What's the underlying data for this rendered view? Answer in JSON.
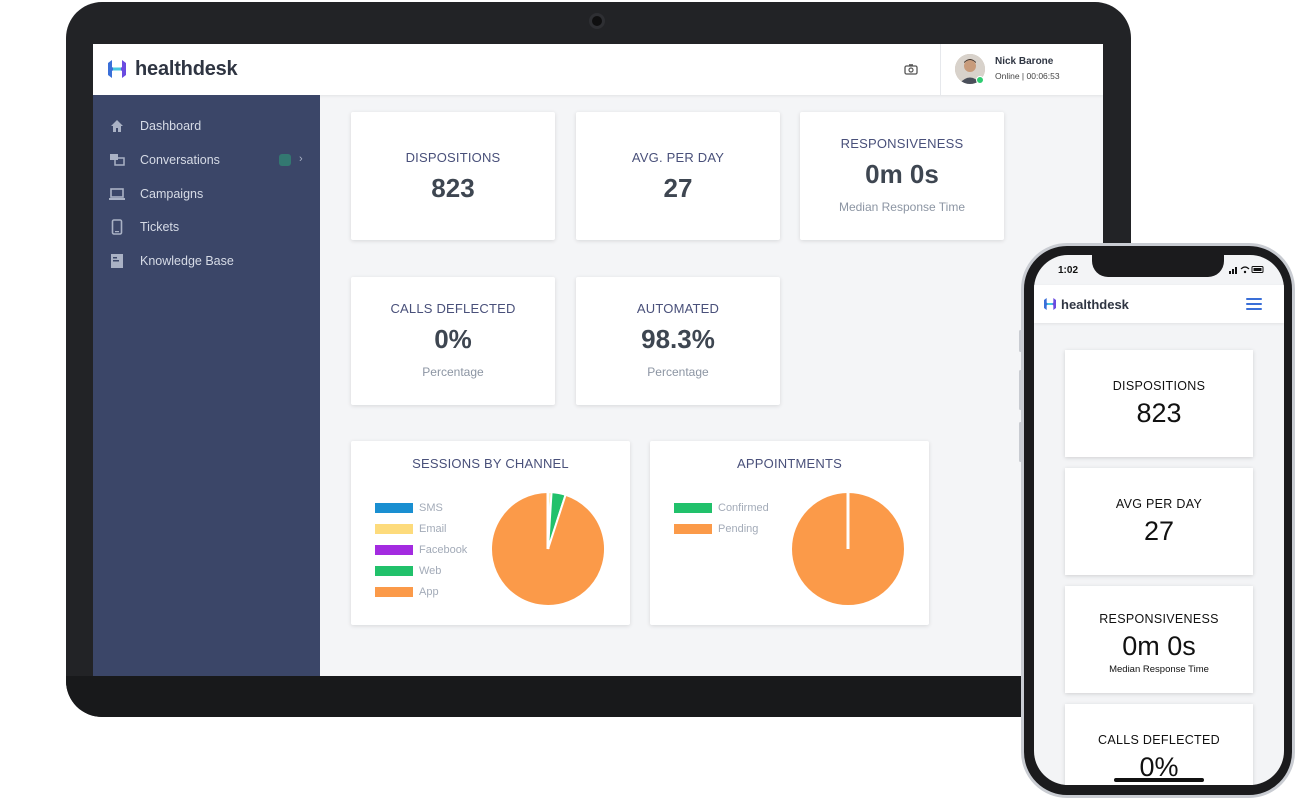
{
  "app": {
    "name": "healthdesk"
  },
  "colors": {
    "sidebar": "#3b4668",
    "accent": "#3a6fd8",
    "online": "#2ecc71",
    "sms": "#1a8fd1",
    "email": "#fddb7c",
    "facebook": "#a32be0",
    "web": "#21c16b",
    "app": "#fb9a49",
    "confirmed": "#21c16b",
    "pending": "#fb9a49"
  },
  "header": {
    "icon": "camera-icon",
    "user": {
      "name": "Nick Barone",
      "status": "Online  |  00:06:53"
    }
  },
  "sidebar": {
    "items": [
      {
        "label": "Dashboard",
        "icon": "home-icon"
      },
      {
        "label": "Conversations",
        "icon": "chat-icon"
      },
      {
        "label": "Campaigns",
        "icon": "monitor-icon"
      },
      {
        "label": "Tickets",
        "icon": "phone-icon"
      },
      {
        "label": "Knowledge Base",
        "icon": "book-icon"
      }
    ]
  },
  "stats": {
    "dispositions": {
      "label": "DISPOSITIONS",
      "value": "823"
    },
    "avg_per_day": {
      "label": "AVG. PER DAY",
      "value": "27"
    },
    "responsiveness": {
      "label": "RESPONSIVENESS",
      "value": "0m 0s",
      "sub": "Median Response Time"
    },
    "calls_deflected": {
      "label": "CALLS DEFLECTED",
      "value": "0%",
      "sub": "Percentage"
    },
    "automated": {
      "label": "AUTOMATED",
      "value": "98.3%",
      "sub": "Percentage"
    }
  },
  "chart_data": [
    {
      "type": "pie",
      "title": "SESSIONS BY CHANNEL",
      "categories": [
        "SMS",
        "Email",
        "Facebook",
        "Web",
        "App"
      ],
      "values": [
        0,
        1,
        0,
        4,
        95
      ],
      "colors": [
        "#1a8fd1",
        "#fddb7c",
        "#a32be0",
        "#21c16b",
        "#fb9a49"
      ],
      "legend": "left"
    },
    {
      "type": "pie",
      "title": "APPOINTMENTS",
      "categories": [
        "Confirmed",
        "Pending"
      ],
      "values": [
        0,
        100
      ],
      "colors": [
        "#21c16b",
        "#fb9a49"
      ],
      "legend": "left"
    }
  ],
  "phone": {
    "time": "1:02",
    "status_icons": "signal-wifi-battery",
    "menu_icon": "hamburger-icon",
    "cards": [
      {
        "label": "DISPOSITIONS",
        "value": "823"
      },
      {
        "label": "AVG PER DAY",
        "value": "27"
      },
      {
        "label": "RESPONSIVENESS",
        "value": "0m 0s",
        "sub": "Median Response Time"
      },
      {
        "label": "CALLS DEFLECTED",
        "value": "0%"
      }
    ]
  }
}
